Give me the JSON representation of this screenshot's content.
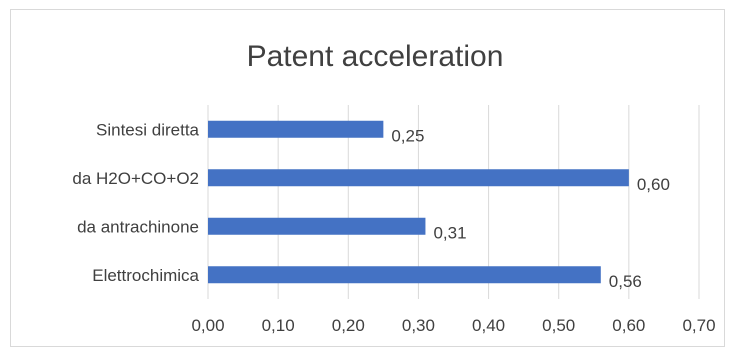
{
  "chart_data": {
    "type": "bar",
    "orientation": "horizontal",
    "title": "Patent acceleration",
    "categories": [
      "Sintesi diretta",
      "da H2O+CO+O2",
      "da antrachinone",
      "Elettrochimica"
    ],
    "values": [
      0.25,
      0.6,
      0.31,
      0.56
    ],
    "data_labels": [
      "0,25",
      "0,60",
      "0,31",
      "0,56"
    ],
    "xlim": [
      0,
      0.7
    ],
    "x_ticks": [
      "0,00",
      "0,10",
      "0,20",
      "0,30",
      "0,40",
      "0,50",
      "0,60",
      "0,70"
    ],
    "xlabel": "",
    "ylabel": "",
    "grid": "vertical",
    "legend": "none",
    "colors": {
      "bar": "#4472c4",
      "grid": "#d9d9d9",
      "text": "#404040"
    }
  }
}
